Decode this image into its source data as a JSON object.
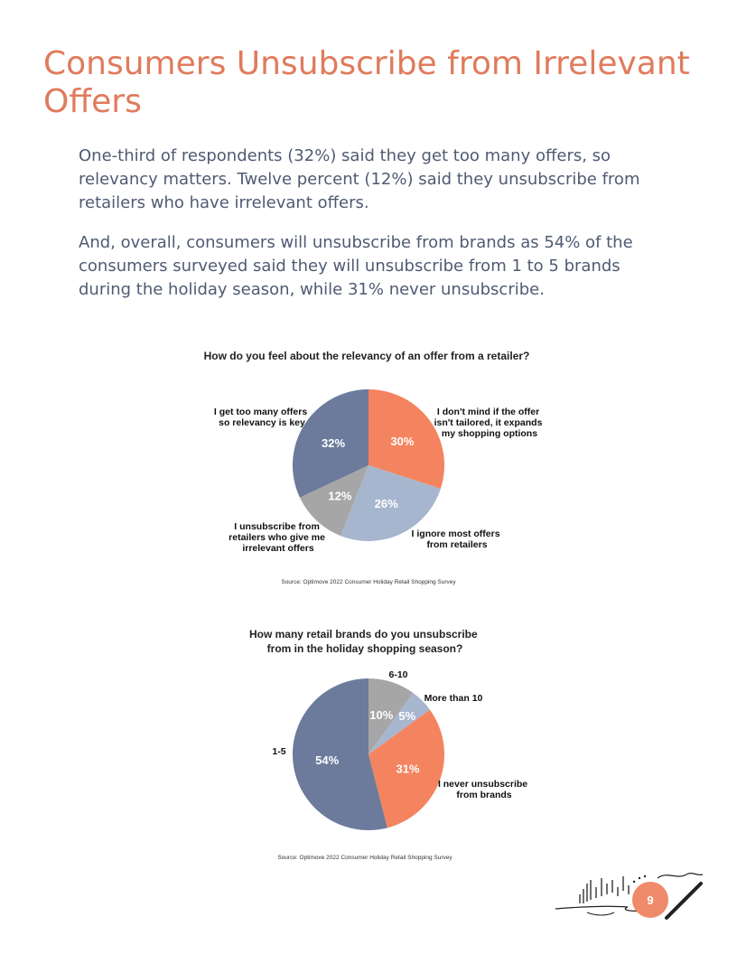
{
  "page": {
    "title": "Consumers Unsubscribe from Irrelevant Offers",
    "paragraphs": [
      "One-third of respondents (32%) said they get too many offers, so relevancy matters. Twelve percent (12%) said they unsubscribe from retailers who have irrelevant offers.",
      "And, overall, consumers will unsubscribe from brands as 54% of the consumers surveyed said they will unsubscribe from 1 to 5 brands during the holiday season, while 31% never unsubscribe."
    ],
    "page_number": "9"
  },
  "chart_data": [
    {
      "type": "pie",
      "title": "How do you feel about the relevancy of an offer from a retailer?",
      "start_angle_deg": 0,
      "slices": [
        {
          "label_lines": [
            "I don't mind if the offer",
            "isn't tailored, it expands",
            "my shopping options"
          ],
          "value": 30,
          "pct_label": "30%",
          "color": "#f4845f"
        },
        {
          "label_lines": [
            "I ignore most offers",
            "from retailers"
          ],
          "value": 26,
          "pct_label": "26%",
          "color": "#a7b6cf"
        },
        {
          "label_lines": [
            "I unsubscribe from",
            "retailers who give me",
            "irrelevant offers"
          ],
          "value": 12,
          "pct_label": "12%",
          "color": "#a6a6a6"
        },
        {
          "label_lines": [
            "I get too many offers",
            "so relevancy is key"
          ],
          "value": 32,
          "pct_label": "32%",
          "color": "#6c7b9c"
        }
      ],
      "source": "Source: Optimove 2022 Consumer Holiday Retail Shopping Survey"
    },
    {
      "type": "pie",
      "title_lines": [
        "How many retail brands do you unsubscribe",
        "from in the holiday shopping season?"
      ],
      "start_angle_deg": 0,
      "slices": [
        {
          "label_lines": [
            "6-10"
          ],
          "value": 10,
          "pct_label": "10%",
          "color": "#a6a6a6"
        },
        {
          "label_lines": [
            "More than 10"
          ],
          "value": 5,
          "pct_label": "5%",
          "color": "#a7b6cf"
        },
        {
          "label_lines": [
            "I never unsubscribe",
            "from brands"
          ],
          "value": 31,
          "pct_label": "31%",
          "color": "#f4845f"
        },
        {
          "label_lines": [
            "1-5"
          ],
          "value": 54,
          "pct_label": "54%",
          "color": "#6c7b9c"
        }
      ],
      "source": "Source: Optimove 2022 Consumer Holiday Retail Shopping Survey"
    }
  ]
}
